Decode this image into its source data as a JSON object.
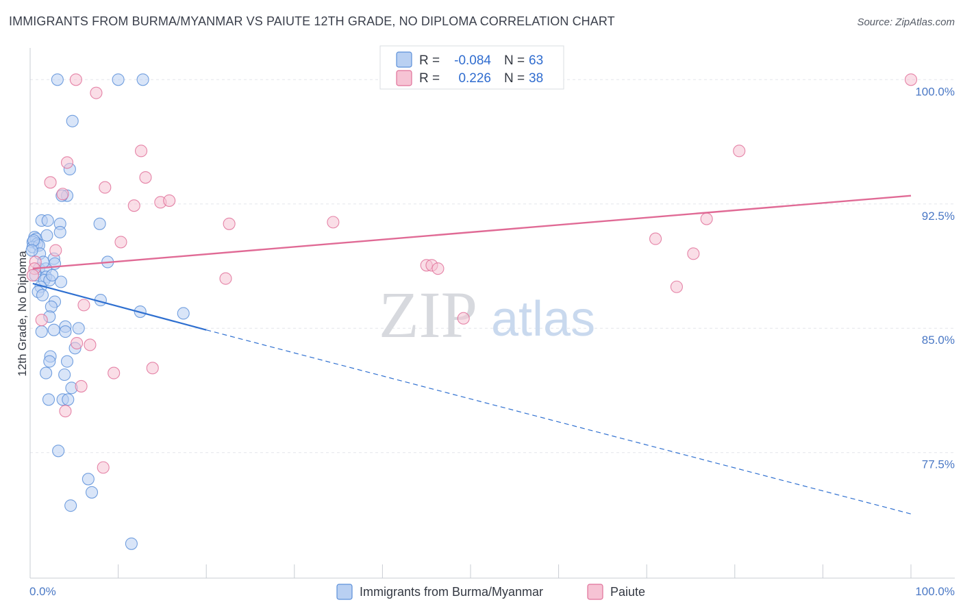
{
  "title": "IMMIGRANTS FROM BURMA/MYANMAR VS PAIUTE 12TH GRADE, NO DIPLOMA CORRELATION CHART",
  "source": "Source: ZipAtlas.com",
  "watermark": {
    "zip": "ZIP",
    "atlas": "atlas"
  },
  "colors": {
    "blue": "#5b8fd9",
    "blue_fill": "#b9d0f2",
    "pink": "#e07099",
    "pink_fill": "#f6c3d4",
    "blue_line": "#2e6fd0",
    "pink_line": "#e06a95"
  },
  "legend": {
    "rows": [
      {
        "r_label": "R =",
        "r_value": "-0.084",
        "n_label": "N =",
        "n_value": "63"
      },
      {
        "r_label": "R =",
        "r_value": "0.226",
        "n_label": "N =",
        "n_value": "38"
      }
    ]
  },
  "chart_data": {
    "type": "scatter",
    "ylabel": "12th Grade, No Diploma",
    "xlabel": "",
    "xlim": [
      0,
      100
    ],
    "ylim": [
      71,
      101.5
    ],
    "x_tick_labels": {
      "left": "0.0%",
      "right": "100.0%"
    },
    "y_ticks": [
      {
        "value": 100.0,
        "label": "100.0%"
      },
      {
        "value": 92.5,
        "label": "92.5%"
      },
      {
        "value": 85.0,
        "label": "85.0%"
      },
      {
        "value": 77.5,
        "label": "77.5%"
      }
    ],
    "grid": true,
    "series": [
      {
        "name": "Immigrants from Burma/Myanmar",
        "color": "#5b8fd9",
        "points": [
          [
            3.1,
            100.0
          ],
          [
            10.0,
            100.0
          ],
          [
            12.8,
            100.0
          ],
          [
            4.8,
            97.5
          ],
          [
            4.5,
            94.6
          ],
          [
            4.2,
            93.0
          ],
          [
            3.6,
            93.0
          ],
          [
            1.3,
            91.5
          ],
          [
            2.0,
            91.5
          ],
          [
            3.4,
            91.3
          ],
          [
            7.9,
            91.3
          ],
          [
            3.4,
            90.8
          ],
          [
            0.5,
            90.5
          ],
          [
            0.7,
            90.4
          ],
          [
            0.3,
            90.2
          ],
          [
            0.8,
            90.1
          ],
          [
            0.3,
            89.9
          ],
          [
            1.0,
            90.0
          ],
          [
            1.1,
            89.5
          ],
          [
            2.7,
            89.2
          ],
          [
            8.8,
            89.0
          ],
          [
            2.8,
            88.9
          ],
          [
            1.0,
            88.6
          ],
          [
            1.8,
            88.6
          ],
          [
            0.6,
            88.2
          ],
          [
            1.8,
            88.1
          ],
          [
            1.6,
            87.9
          ],
          [
            2.2,
            87.9
          ],
          [
            3.5,
            87.8
          ],
          [
            1.2,
            87.5
          ],
          [
            0.9,
            87.2
          ],
          [
            1.4,
            87.0
          ],
          [
            2.8,
            86.6
          ],
          [
            8.0,
            86.7
          ],
          [
            2.4,
            86.3
          ],
          [
            12.5,
            86.0
          ],
          [
            17.4,
            85.9
          ],
          [
            2.2,
            85.7
          ],
          [
            4.0,
            85.1
          ],
          [
            5.5,
            85.0
          ],
          [
            2.7,
            84.9
          ],
          [
            1.3,
            84.8
          ],
          [
            4.0,
            84.8
          ],
          [
            5.1,
            83.8
          ],
          [
            2.3,
            83.3
          ],
          [
            2.2,
            83.0
          ],
          [
            4.2,
            83.0
          ],
          [
            1.8,
            82.3
          ],
          [
            3.9,
            82.2
          ],
          [
            4.7,
            81.4
          ],
          [
            2.1,
            80.7
          ],
          [
            3.7,
            80.7
          ],
          [
            4.3,
            80.7
          ],
          [
            3.2,
            77.6
          ],
          [
            6.6,
            75.9
          ],
          [
            7.0,
            75.1
          ],
          [
            4.6,
            74.3
          ],
          [
            11.5,
            72.0
          ],
          [
            0.4,
            90.3
          ],
          [
            1.5,
            89.0
          ],
          [
            2.5,
            88.2
          ],
          [
            0.2,
            89.7
          ],
          [
            1.9,
            90.6
          ]
        ],
        "trend": {
          "x_start": 0.3,
          "y_start": 87.7,
          "x_solid_end": 20.0,
          "y_solid_end": 84.9,
          "x_end": 100.0,
          "y_end": 73.8
        }
      },
      {
        "name": "Paiute",
        "color": "#e07099",
        "points": [
          [
            5.2,
            100.0
          ],
          [
            100.0,
            100.0
          ],
          [
            7.5,
            99.2
          ],
          [
            12.6,
            95.7
          ],
          [
            4.2,
            95.0
          ],
          [
            13.1,
            94.1
          ],
          [
            2.3,
            93.8
          ],
          [
            8.5,
            93.5
          ],
          [
            3.7,
            93.1
          ],
          [
            14.8,
            92.6
          ],
          [
            15.8,
            92.7
          ],
          [
            11.8,
            92.4
          ],
          [
            22.6,
            91.3
          ],
          [
            34.4,
            91.4
          ],
          [
            80.5,
            95.7
          ],
          [
            76.8,
            91.6
          ],
          [
            71.0,
            90.4
          ],
          [
            10.3,
            90.2
          ],
          [
            2.9,
            89.7
          ],
          [
            75.3,
            89.5
          ],
          [
            45.0,
            88.8
          ],
          [
            45.6,
            88.8
          ],
          [
            46.3,
            88.6
          ],
          [
            0.6,
            89.0
          ],
          [
            0.5,
            88.6
          ],
          [
            22.2,
            88.0
          ],
          [
            73.4,
            87.5
          ],
          [
            6.1,
            86.4
          ],
          [
            49.2,
            85.6
          ],
          [
            1.3,
            85.5
          ],
          [
            6.8,
            84.0
          ],
          [
            5.3,
            84.1
          ],
          [
            13.9,
            82.6
          ],
          [
            9.5,
            82.3
          ],
          [
            5.8,
            81.5
          ],
          [
            4.0,
            80.0
          ],
          [
            8.3,
            76.6
          ],
          [
            0.3,
            88.2
          ]
        ],
        "trend": {
          "x_start": 0.3,
          "y_start": 88.6,
          "x_end": 100.0,
          "y_end": 93.0
        }
      }
    ]
  }
}
